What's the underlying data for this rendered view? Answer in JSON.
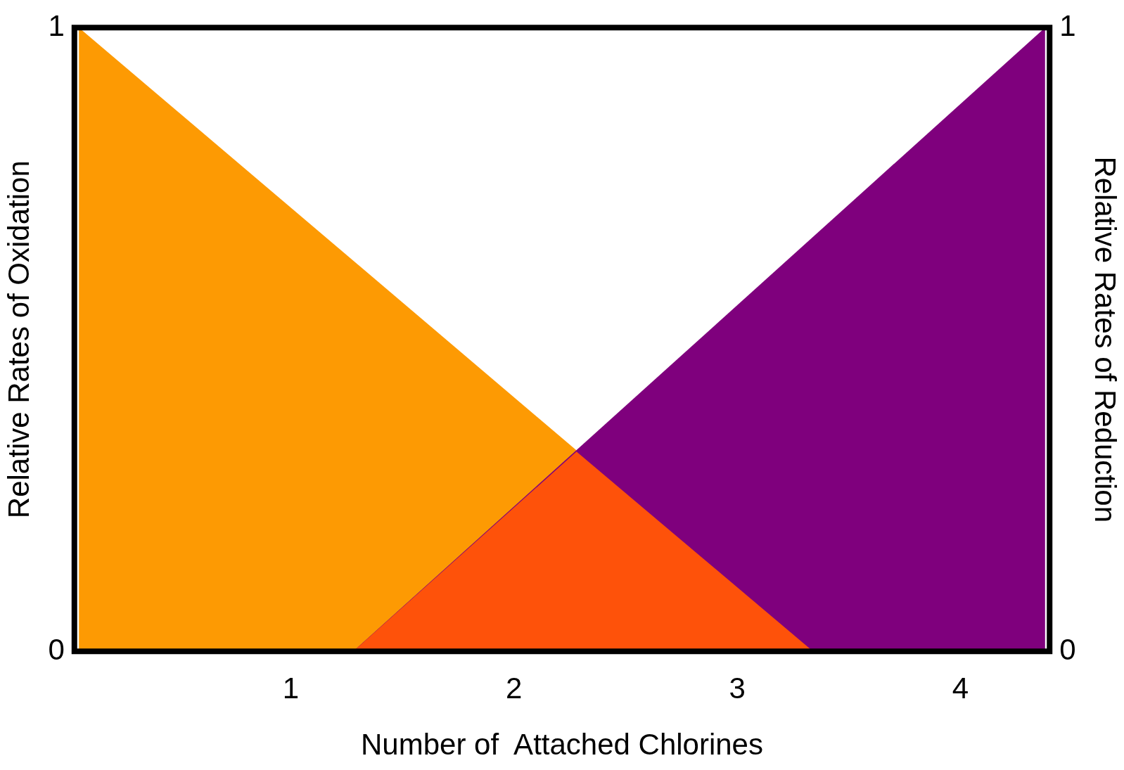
{
  "chart_data": {
    "type": "area",
    "xlabel": "Number of  Attached Chlorines",
    "ylabel": "Relative Rates of Oxidation",
    "y2label": "Relative Rates of Reduction",
    "xlim": [
      0.03,
      4.4
    ],
    "xticks": [
      1,
      2,
      3,
      4
    ],
    "ylim": [
      0,
      1
    ],
    "yticks": [
      0,
      1
    ],
    "y2lim": [
      0,
      1
    ],
    "y2ticks": [
      0,
      1
    ],
    "grid": false,
    "legend": false,
    "series": [
      {
        "color": "#fd9a03",
        "x": [
          0.05,
          3.34
        ],
        "values": [
          1,
          0
        ]
      },
      {
        "color": "#7f007d",
        "x": [
          1.28,
          4.38
        ],
        "values": [
          0,
          1
        ]
      },
      {
        "color": "#fe520a",
        "x": [
          1.28,
          2.28,
          3.34
        ],
        "values": [
          0,
          0.32,
          0
        ]
      }
    ]
  }
}
